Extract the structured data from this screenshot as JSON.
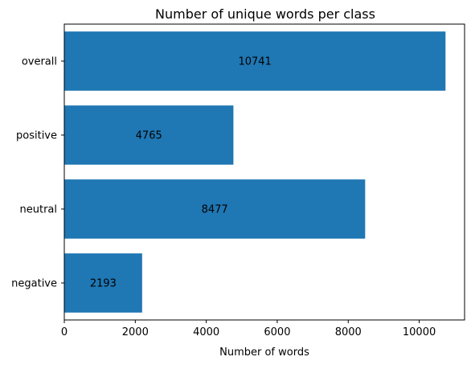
{
  "chart_data": {
    "type": "bar",
    "orientation": "horizontal",
    "title": "Number of unique words per class",
    "xlabel": "Number of words",
    "ylabel": "",
    "categories": [
      "overall",
      "positive",
      "neutral",
      "negative"
    ],
    "values": [
      10741,
      4765,
      8477,
      2193
    ],
    "data_labels": [
      "10741",
      "4765",
      "8477",
      "2193"
    ],
    "xlim": [
      0,
      11278
    ],
    "xticks": [
      0,
      2000,
      4000,
      6000,
      8000,
      10000
    ],
    "xtick_labels": [
      "0",
      "2000",
      "4000",
      "6000",
      "8000",
      "10000"
    ],
    "grid": false,
    "legend": "none",
    "colors": {
      "bar": "#1f77b4",
      "axis": "#000000",
      "text": "#000000"
    }
  }
}
